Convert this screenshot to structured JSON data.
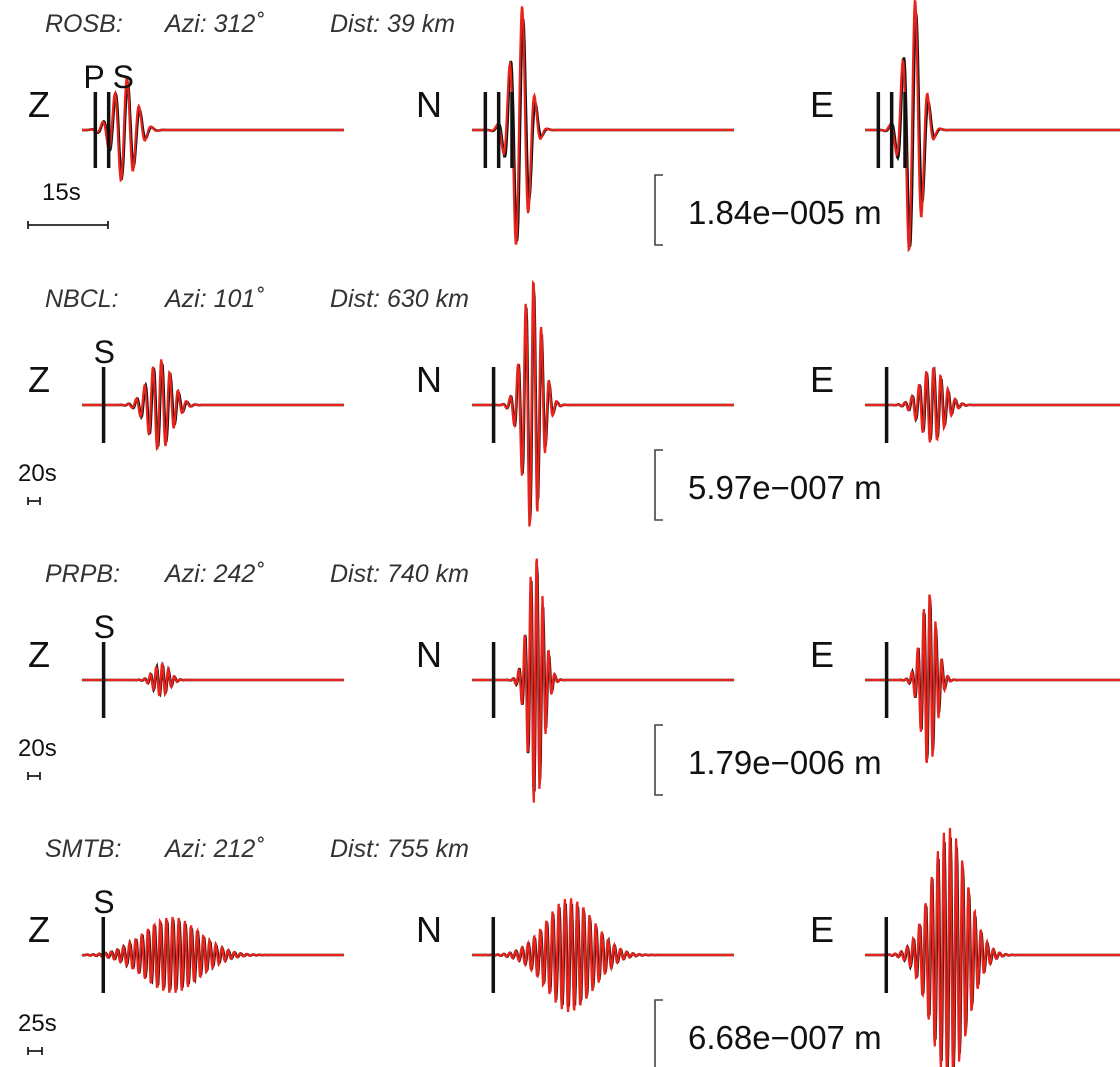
{
  "chart_data": {
    "type": "line",
    "title": "",
    "series_legend": "",
    "colors": {
      "observed": "#111111",
      "synthetic": "#e8231b"
    },
    "components": [
      "Z",
      "N",
      "E"
    ],
    "stations": [
      {
        "name": "ROSB:",
        "azi_label": "Azi: 312˚",
        "dist_label": "Dist: 39 km",
        "azimuth_deg": 312,
        "distance_km": 39,
        "time_scale_label": "15s",
        "time_scale_s": 15,
        "amplitude_label": "1.84e−005 m",
        "amplitude_m": 1.84e-05,
        "pick_labels": [
          "P",
          "S"
        ],
        "picks_s": {
          "P": 2.5,
          "S": 5.0
        },
        "traces": [
          {
            "component": "Z",
            "center_s": 8.0,
            "width_s": 3.0,
            "period_s": 2.3,
            "peak_frac": 0.42,
            "phase_shift": 0.4
          },
          {
            "component": "N",
            "center_s": 9.0,
            "width_s": 2.4,
            "period_s": 2.4,
            "peak_frac": 1.0,
            "phase_shift": 0.5
          },
          {
            "component": "E",
            "center_s": 9.0,
            "width_s": 2.4,
            "period_s": 2.4,
            "peak_frac": 1.05,
            "phase_shift": 0.5
          }
        ]
      },
      {
        "name": "NBCL:",
        "azi_label": "Azi: 101˚",
        "dist_label": "Dist: 630 km",
        "azimuth_deg": 101,
        "distance_km": 630,
        "time_scale_label": "20s",
        "time_scale_s": 20,
        "amplitude_label": "5.97e−007 m",
        "amplitude_m": 5.97e-07,
        "pick_labels": [
          "S"
        ],
        "picks_s": {
          "S": 36
        },
        "traces": [
          {
            "component": "Z",
            "center_s": 130,
            "width_s": 28,
            "period_s": 14,
            "peak_frac": 0.36,
            "phase_shift": 0.6
          },
          {
            "component": "N",
            "center_s": 100,
            "width_s": 22,
            "period_s": 13,
            "peak_frac": 1.0,
            "phase_shift": 0.4
          },
          {
            "component": "E",
            "center_s": 112,
            "width_s": 28,
            "period_s": 12,
            "peak_frac": 0.3,
            "phase_shift": 0.5
          }
        ]
      },
      {
        "name": "PRPB:",
        "azi_label": "Azi: 242˚",
        "dist_label": "Dist: 740 km",
        "azimuth_deg": 242,
        "distance_km": 740,
        "time_scale_label": "20s",
        "time_scale_s": 20,
        "amplitude_label": "1.79e−006 m",
        "amplitude_m": 1.79e-06,
        "pick_labels": [
          "S"
        ],
        "picks_s": {
          "S": 36
        },
        "traces": [
          {
            "component": "Z",
            "center_s": 132,
            "width_s": 18,
            "period_s": 10,
            "peak_frac": 0.13,
            "phase_shift": 0.5
          },
          {
            "component": "N",
            "center_s": 106,
            "width_s": 18,
            "period_s": 10,
            "peak_frac": 1.0,
            "phase_shift": 0.5
          },
          {
            "component": "E",
            "center_s": 106,
            "width_s": 18,
            "period_s": 10,
            "peak_frac": 0.7,
            "phase_shift": 0.5
          }
        ]
      },
      {
        "name": "SMTB:",
        "azi_label": "Azi: 212˚",
        "dist_label": "Dist: 755 km",
        "azimuth_deg": 212,
        "distance_km": 755,
        "time_scale_label": "25s",
        "time_scale_s": 25,
        "amplitude_label": "6.68e−007 m",
        "amplitude_m": 6.68e-07,
        "pick_labels": [
          "S"
        ],
        "picks_s": {
          "S": 38
        },
        "traces": [
          {
            "component": "Z",
            "center_s": 160,
            "width_s": 70,
            "period_s": 11,
            "peak_frac": 0.3,
            "phase_shift": 0.6
          },
          {
            "component": "N",
            "center_s": 175,
            "width_s": 60,
            "period_s": 11,
            "peak_frac": 0.45,
            "phase_shift": 0.5
          },
          {
            "component": "E",
            "center_s": 150,
            "width_s": 45,
            "period_s": 11,
            "peak_frac": 1.0,
            "phase_shift": 0.5
          }
        ]
      }
    ]
  }
}
